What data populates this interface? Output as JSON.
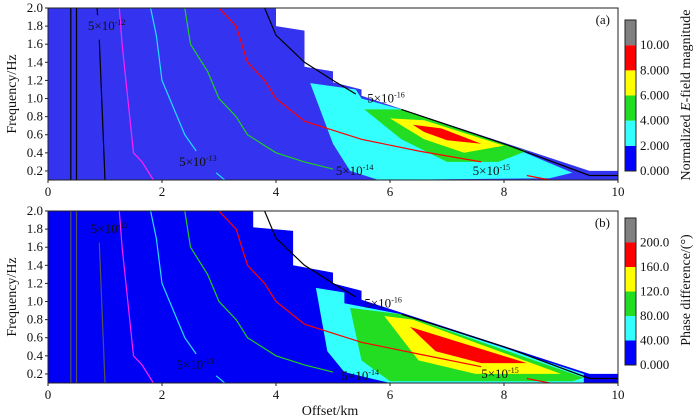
{
  "chart_data": [
    {
      "type": "heatmap",
      "panel_label": "(a)",
      "xlabel": "Offset/km",
      "ylabel": "Frequency/Hz",
      "xlim": [
        0,
        10
      ],
      "ylim": [
        0.1,
        2.0
      ],
      "xticks": [
        "0",
        "2",
        "4",
        "6",
        "8",
        "10"
      ],
      "xtick_values": [
        0,
        2,
        4,
        6,
        8,
        10
      ],
      "yticks": [
        "0.2",
        "0.4",
        "0.6",
        "0.8",
        "1.0",
        "1.2",
        "1.4",
        "1.6",
        "1.8",
        "2.0"
      ],
      "ytick_values": [
        0.2,
        0.4,
        0.6,
        0.8,
        1.0,
        1.2,
        1.4,
        1.6,
        1.8,
        2.0
      ],
      "colorbar": {
        "title_parts": [
          "Normalized ",
          "E",
          "-field magnitude"
        ],
        "levels": [
          "0.000",
          "2.000",
          "4.000",
          "6.000",
          "8.000",
          "10.00"
        ],
        "colors": [
          "#0000ff",
          "#33ffff",
          "#22dd22",
          "#ffff00",
          "#ff0000",
          "#808080"
        ]
      },
      "regions": [
        {
          "level": "0-2",
          "color": "#3434f0",
          "points": [
            [
              0,
              2.0
            ],
            [
              4.0,
              2.0
            ],
            [
              4.0,
              1.8
            ],
            [
              4.5,
              1.75
            ],
            [
              4.5,
              1.35
            ],
            [
              5.0,
              1.3
            ],
            [
              5.0,
              1.18
            ],
            [
              5.5,
              1.1
            ],
            [
              5.5,
              1.03
            ],
            [
              9.5,
              0.2
            ],
            [
              10,
              0.2
            ],
            [
              10,
              0.1
            ],
            [
              0,
              0.1
            ]
          ]
        },
        {
          "level": "2-4",
          "color": "#33ffff",
          "points": [
            [
              4.6,
              1.17
            ],
            [
              5.4,
              1.1
            ],
            [
              5.5,
              1.0
            ],
            [
              6.2,
              0.88
            ],
            [
              8.0,
              0.5
            ],
            [
              9.2,
              0.18
            ],
            [
              8.8,
              0.12
            ],
            [
              5.8,
              0.1
            ],
            [
              5.3,
              0.2
            ],
            [
              5.0,
              0.5
            ],
            [
              4.6,
              1.17
            ]
          ]
        },
        {
          "level": "4-6",
          "color": "#22dd22",
          "points": [
            [
              5.55,
              0.88
            ],
            [
              6.2,
              0.88
            ],
            [
              8.0,
              0.5
            ],
            [
              8.4,
              0.42
            ],
            [
              7.9,
              0.3
            ],
            [
              7.0,
              0.3
            ],
            [
              6.2,
              0.55
            ]
          ]
        },
        {
          "level": "6-8",
          "color": "#ffff00",
          "points": [
            [
              6.0,
              0.78
            ],
            [
              6.6,
              0.76
            ],
            [
              8.0,
              0.48
            ],
            [
              7.3,
              0.4
            ],
            [
              6.6,
              0.55
            ]
          ]
        },
        {
          "level": "8-10",
          "color": "#ff0000",
          "points": [
            [
              6.4,
              0.71
            ],
            [
              6.9,
              0.67
            ],
            [
              7.6,
              0.5
            ],
            [
              7.0,
              0.54
            ],
            [
              6.6,
              0.63
            ]
          ]
        }
      ],
      "contours": [
        {
          "color": "#000000",
          "points": [
            [
              0.4,
              2.0
            ],
            [
              0.4,
              0.1
            ]
          ]
        },
        {
          "color": "#000000",
          "points": [
            [
              0.5,
              2.0
            ],
            [
              0.5,
              0.1
            ]
          ]
        },
        {
          "color": "#000000",
          "points": [
            [
              0.9,
              1.65
            ],
            [
              1.0,
              0.1
            ]
          ]
        },
        {
          "color": "#000000",
          "points": [
            [
              0.86,
              2.0
            ],
            [
              0.87,
              1.92
            ]
          ]
        },
        {
          "color": "#ff22ff",
          "points": [
            [
              1.25,
              2.0
            ],
            [
              1.3,
              1.6
            ],
            [
              1.5,
              0.4
            ],
            [
              1.65,
              0.3
            ],
            [
              1.85,
              0.1
            ]
          ]
        },
        {
          "color": "#22ddff",
          "points": [
            [
              1.8,
              2.0
            ],
            [
              1.9,
              1.7
            ],
            [
              2.0,
              1.2
            ],
            [
              2.2,
              0.9
            ],
            [
              2.4,
              0.6
            ],
            [
              2.6,
              0.42
            ]
          ]
        },
        {
          "color": "#22ddff",
          "points": [
            [
              2.95,
              0.18
            ],
            [
              3.1,
              0.1
            ]
          ]
        },
        {
          "color": "#22cc22",
          "points": [
            [
              2.4,
              2.0
            ],
            [
              2.5,
              1.6
            ],
            [
              2.8,
              1.3
            ],
            [
              3.0,
              1.0
            ],
            [
              3.3,
              0.8
            ],
            [
              3.5,
              0.6
            ],
            [
              4.0,
              0.4
            ],
            [
              4.5,
              0.3
            ],
            [
              5.0,
              0.22
            ]
          ]
        },
        {
          "color": "#ff0000",
          "points": [
            [
              3.0,
              2.0
            ],
            [
              3.3,
              1.8
            ],
            [
              3.5,
              1.4
            ],
            [
              3.8,
              1.2
            ],
            [
              4.0,
              1.0
            ],
            [
              4.5,
              0.75
            ],
            [
              5.5,
              0.55
            ],
            [
              6.5,
              0.42
            ],
            [
              7.6,
              0.3
            ]
          ]
        },
        {
          "color": "#ff0000",
          "points": [
            [
              8.4,
              0.15
            ],
            [
              8.8,
              0.1
            ]
          ]
        },
        {
          "color": "#000000",
          "points": [
            [
              3.8,
              2.0
            ],
            [
              4.0,
              1.7
            ],
            [
              4.5,
              1.4
            ],
            [
              5.0,
              1.2
            ],
            [
              5.4,
              1.05
            ]
          ]
        },
        {
          "color": "#000000",
          "points": [
            [
              6.2,
              0.88
            ],
            [
              8.0,
              0.5
            ],
            [
              9.5,
              0.15
            ],
            [
              10,
              0.15
            ]
          ]
        }
      ],
      "contour_labels": [
        {
          "base": "5×10",
          "exp": "-12",
          "x": 0.7,
          "y": 1.8
        },
        {
          "base": "5×10",
          "exp": "-13",
          "x": 2.3,
          "y": 0.3
        },
        {
          "base": "5×10",
          "exp": "-14",
          "x": 5.05,
          "y": 0.2
        },
        {
          "base": "5×10",
          "exp": "-15",
          "x": 7.45,
          "y": 0.2
        },
        {
          "base": "5×10",
          "exp": "-16",
          "x": 5.6,
          "y": 1.0
        }
      ]
    },
    {
      "type": "heatmap",
      "panel_label": "(b)",
      "xlabel": "Offset/km",
      "ylabel": "Frequency/Hz",
      "xlim": [
        0,
        10
      ],
      "ylim": [
        0.1,
        2.0
      ],
      "xticks": [
        "0",
        "2",
        "4",
        "6",
        "8",
        "10"
      ],
      "xtick_values": [
        0,
        2,
        4,
        6,
        8,
        10
      ],
      "yticks": [
        "0.2",
        "0.4",
        "0.6",
        "0.8",
        "1.0",
        "1.2",
        "1.4",
        "1.6",
        "1.8",
        "2.0"
      ],
      "ytick_values": [
        0.2,
        0.4,
        0.6,
        0.8,
        1.0,
        1.2,
        1.4,
        1.6,
        1.8,
        2.0
      ],
      "colorbar": {
        "title_parts": [
          "Phase difference/(°)"
        ],
        "levels": [
          "0.000",
          "40.00",
          "80.00",
          "120.0",
          "160.0",
          "200.0"
        ],
        "colors": [
          "#0000ff",
          "#33ffff",
          "#22dd22",
          "#ffff00",
          "#ff0000",
          "#808080"
        ]
      },
      "regions": [
        {
          "level": "0-40",
          "color": "#0000f4",
          "points": [
            [
              0,
              2.0
            ],
            [
              3.6,
              2.0
            ],
            [
              3.6,
              1.82
            ],
            [
              4.3,
              1.78
            ],
            [
              4.3,
              1.4
            ],
            [
              5.0,
              1.32
            ],
            [
              5.0,
              1.2
            ],
            [
              5.5,
              1.12
            ],
            [
              5.5,
              1.02
            ],
            [
              9.5,
              0.2
            ],
            [
              10,
              0.2
            ],
            [
              10,
              0.1
            ],
            [
              0,
              0.1
            ]
          ]
        },
        {
          "level": "40-80",
          "color": "#33ffff",
          "points": [
            [
              4.7,
              1.15
            ],
            [
              5.2,
              1.1
            ],
            [
              5.2,
              0.98
            ],
            [
              6.2,
              0.86
            ],
            [
              9.4,
              0.2
            ],
            [
              9.4,
              0.1
            ],
            [
              6.0,
              0.1
            ],
            [
              5.2,
              0.22
            ],
            [
              4.9,
              0.45
            ],
            [
              4.7,
              1.15
            ]
          ]
        },
        {
          "level": "80-120",
          "color": "#22dd22",
          "points": [
            [
              5.3,
              0.93
            ],
            [
              6.2,
              0.86
            ],
            [
              9.4,
              0.16
            ],
            [
              9.2,
              0.12
            ],
            [
              6.0,
              0.12
            ],
            [
              5.5,
              0.35
            ],
            [
              5.3,
              0.93
            ]
          ]
        },
        {
          "level": "120-160",
          "color": "#ffff00",
          "points": [
            [
              5.9,
              0.84
            ],
            [
              6.4,
              0.8
            ],
            [
              9.0,
              0.2
            ],
            [
              7.5,
              0.2
            ],
            [
              6.5,
              0.35
            ],
            [
              5.9,
              0.84
            ]
          ]
        },
        {
          "level": "160-200",
          "color": "#ff0000",
          "points": [
            [
              6.35,
              0.72
            ],
            [
              8.4,
              0.32
            ],
            [
              7.6,
              0.32
            ],
            [
              6.8,
              0.45
            ],
            [
              6.35,
              0.72
            ]
          ]
        }
      ],
      "contours": [
        {
          "color": "#555555",
          "points": [
            [
              0.4,
              2.0
            ],
            [
              0.4,
              0.1
            ]
          ]
        },
        {
          "color": "#555555",
          "points": [
            [
              0.5,
              2.0
            ],
            [
              0.5,
              0.1
            ]
          ]
        },
        {
          "color": "#555555",
          "points": [
            [
              0.9,
              1.65
            ],
            [
              1.0,
              0.1
            ]
          ]
        },
        {
          "color": "#ff22ff",
          "points": [
            [
              1.25,
              2.0
            ],
            [
              1.3,
              1.6
            ],
            [
              1.5,
              0.4
            ],
            [
              1.65,
              0.3
            ],
            [
              1.85,
              0.1
            ]
          ]
        },
        {
          "color": "#22ddff",
          "points": [
            [
              1.8,
              2.0
            ],
            [
              1.9,
              1.7
            ],
            [
              2.0,
              1.2
            ],
            [
              2.2,
              0.9
            ],
            [
              2.4,
              0.6
            ],
            [
              2.6,
              0.42
            ]
          ]
        },
        {
          "color": "#22ddff",
          "points": [
            [
              2.95,
              0.18
            ],
            [
              3.1,
              0.1
            ]
          ]
        },
        {
          "color": "#22cc22",
          "points": [
            [
              2.4,
              2.0
            ],
            [
              2.5,
              1.6
            ],
            [
              2.8,
              1.3
            ],
            [
              3.0,
              1.0
            ],
            [
              3.3,
              0.8
            ],
            [
              3.5,
              0.6
            ],
            [
              4.0,
              0.4
            ],
            [
              4.5,
              0.3
            ],
            [
              5.0,
              0.22
            ]
          ]
        },
        {
          "color": "#ff0000",
          "points": [
            [
              3.0,
              2.0
            ],
            [
              3.3,
              1.8
            ],
            [
              3.5,
              1.4
            ],
            [
              3.8,
              1.2
            ],
            [
              4.0,
              1.0
            ],
            [
              4.5,
              0.75
            ],
            [
              5.5,
              0.55
            ],
            [
              6.5,
              0.42
            ],
            [
              7.6,
              0.28
            ]
          ]
        },
        {
          "color": "#ff0000",
          "points": [
            [
              8.4,
              0.15
            ],
            [
              8.8,
              0.1
            ]
          ]
        },
        {
          "color": "#000000",
          "points": [
            [
              3.8,
              2.0
            ],
            [
              4.0,
              1.7
            ],
            [
              4.5,
              1.4
            ],
            [
              5.0,
              1.2
            ],
            [
              5.4,
              1.05
            ]
          ]
        },
        {
          "color": "#000000",
          "points": [
            [
              6.2,
              0.86
            ],
            [
              8.0,
              0.5
            ],
            [
              9.5,
              0.15
            ],
            [
              10,
              0.15
            ]
          ]
        }
      ],
      "contour_labels": [
        {
          "base": "5×10",
          "exp": "-12",
          "x": 0.75,
          "y": 1.8
        },
        {
          "base": "5×10",
          "exp": "-13",
          "x": 2.25,
          "y": 0.3
        },
        {
          "base": "5×10",
          "exp": "-14",
          "x": 5.15,
          "y": 0.18
        },
        {
          "base": "5×10",
          "exp": "-15",
          "x": 7.6,
          "y": 0.2
        },
        {
          "base": "5×10",
          "exp": "-16",
          "x": 5.55,
          "y": 0.98
        }
      ]
    }
  ]
}
